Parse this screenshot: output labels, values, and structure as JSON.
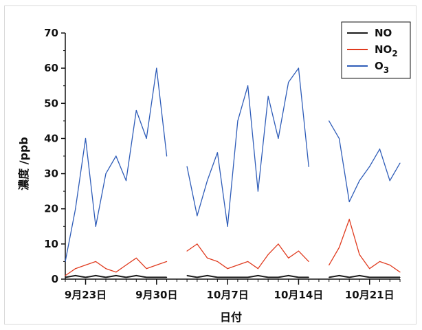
{
  "chart_data": {
    "type": "line",
    "xlabel": "日付",
    "ylabel": "濃度 /ppb",
    "ylim": [
      0,
      70
    ],
    "yticks": [
      "0",
      "10",
      "20",
      "30",
      "40",
      "50",
      "60",
      "70"
    ],
    "xlim": [
      "9-21",
      "10-24"
    ],
    "xtick_labels": [
      "9月23日",
      "9月30日",
      "10月7日",
      "10月14日",
      "10月21日"
    ],
    "legend_position": "top-right",
    "grid": false,
    "series": [
      {
        "name": "NO",
        "sub": "",
        "color": "#1a1a1a",
        "x": [
          "9-21",
          "9-22",
          "9-23",
          "9-24",
          "9-25",
          "9-26",
          "9-27",
          "9-28",
          "9-29",
          "9-30",
          "10-1",
          "10-2",
          "10-3",
          "10-4",
          "10-5",
          "10-6",
          "10-7",
          "10-8",
          "10-9",
          "10-10",
          "10-11",
          "10-12",
          "10-13",
          "10-14",
          "10-15",
          "10-16",
          "10-17",
          "10-18",
          "10-19",
          "10-20",
          "10-21",
          "10-22",
          "10-23",
          "10-24"
        ],
        "y": [
          0.5,
          1,
          0.5,
          1,
          0.5,
          1,
          0.5,
          1,
          0.5,
          0.5,
          0.5,
          null,
          1,
          0.5,
          1,
          0.5,
          0.5,
          0.5,
          0.5,
          1,
          0.5,
          0.5,
          1,
          0.5,
          0.5,
          null,
          0.5,
          1,
          0.5,
          1,
          0.5,
          0.5,
          0.5,
          0.5
        ]
      },
      {
        "name": "NO",
        "sub": "2",
        "color": "#e03a1e",
        "x": [
          "9-21",
          "9-22",
          "9-23",
          "9-24",
          "9-25",
          "9-26",
          "9-27",
          "9-28",
          "9-29",
          "9-30",
          "10-1",
          "10-2",
          "10-3",
          "10-4",
          "10-5",
          "10-6",
          "10-7",
          "10-8",
          "10-9",
          "10-10",
          "10-11",
          "10-12",
          "10-13",
          "10-14",
          "10-15",
          "10-16",
          "10-17",
          "10-18",
          "10-19",
          "10-20",
          "10-21",
          "10-22",
          "10-23",
          "10-24"
        ],
        "y": [
          1,
          3,
          4,
          5,
          3,
          2,
          4,
          6,
          3,
          4,
          5,
          null,
          8,
          10,
          6,
          5,
          3,
          4,
          5,
          3,
          7,
          10,
          6,
          8,
          5,
          null,
          4,
          9,
          17,
          7,
          3,
          5,
          4,
          2
        ]
      },
      {
        "name": "O",
        "sub": "3",
        "color": "#2e5cb8",
        "x": [
          "9-21",
          "9-22",
          "9-23",
          "9-24",
          "9-25",
          "9-26",
          "9-27",
          "9-28",
          "9-29",
          "9-30",
          "10-1",
          "10-2",
          "10-3",
          "10-4",
          "10-5",
          "10-6",
          "10-7",
          "10-8",
          "10-9",
          "10-10",
          "10-11",
          "10-12",
          "10-13",
          "10-14",
          "10-15",
          "10-16",
          "10-17",
          "10-18",
          "10-19",
          "10-20",
          "10-21",
          "10-22",
          "10-23",
          "10-24"
        ],
        "y": [
          5,
          20,
          40,
          15,
          30,
          35,
          28,
          48,
          40,
          60,
          35,
          null,
          32,
          18,
          28,
          36,
          15,
          45,
          55,
          25,
          52,
          40,
          56,
          60,
          32,
          null,
          45,
          40,
          22,
          28,
          32,
          37,
          28,
          33
        ]
      }
    ]
  }
}
